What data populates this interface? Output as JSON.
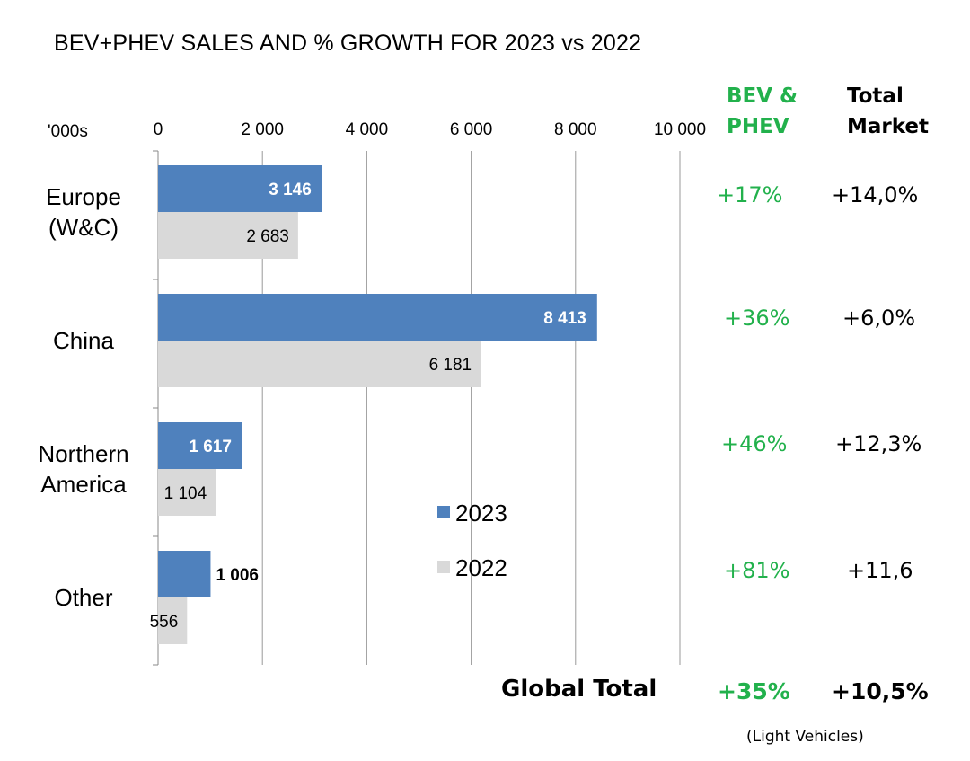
{
  "chart_data": {
    "type": "bar",
    "orientation": "horizontal",
    "title": "BEV+PHEV SALES AND % GROWTH FOR 2023 vs 2022",
    "unit_label": "'000s",
    "xlim": [
      0,
      10000
    ],
    "xticks": [
      "0",
      "2 000",
      "4 000",
      "6 000",
      "8 000",
      "10 000"
    ],
    "xtick_values": [
      0,
      2000,
      4000,
      6000,
      8000,
      10000
    ],
    "grid": true,
    "legend_position": "center",
    "categories": [
      [
        "Europe",
        "(W&C)"
      ],
      [
        "China"
      ],
      [
        "Northern",
        "America"
      ],
      [
        "Other"
      ]
    ],
    "series": [
      {
        "name": "2023",
        "color": "#4f81bd",
        "values": [
          3146,
          8413,
          1617,
          1006
        ],
        "labels": [
          "3 146",
          "8 413",
          "1 617",
          "1 006"
        ]
      },
      {
        "name": "2022",
        "color": "#d9d9d9",
        "values": [
          2683,
          6181,
          1104,
          556
        ],
        "labels": [
          "2 683",
          "6 181",
          "1 104",
          "556"
        ]
      }
    ]
  },
  "growth_table": {
    "bev_header": [
      "BEV &",
      "PHEV"
    ],
    "total_header": [
      "Total",
      "Market"
    ],
    "bev_color": "#22b14c",
    "rows": [
      {
        "bev": "+17%",
        "total": "+14,0%"
      },
      {
        "bev": "+36%",
        "total": "+6,0%"
      },
      {
        "bev": "+46%",
        "total": "+12,3%"
      },
      {
        "bev": "+81%",
        "total": "+11,6"
      }
    ],
    "global_label": "Global Total",
    "global_bev": "+35%",
    "global_total": "+10,5%",
    "footnote": "(Light Vehicles)"
  }
}
